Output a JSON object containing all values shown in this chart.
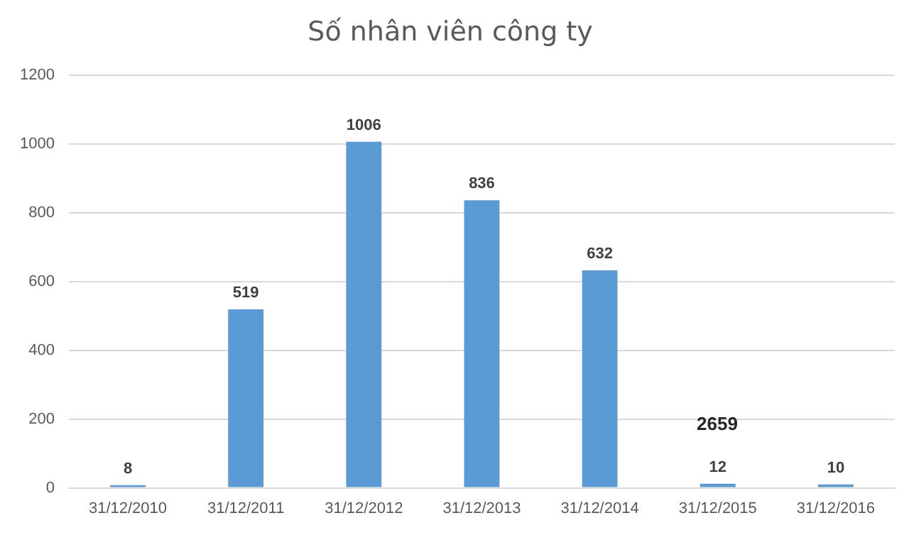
{
  "chart_data": {
    "type": "bar",
    "title": "Số nhân viên công ty",
    "categories": [
      "31/12/2010",
      "31/12/2011",
      "31/12/2012",
      "31/12/2013",
      "31/12/2014",
      "31/12/2015",
      "31/12/2016"
    ],
    "values": [
      8,
      519,
      1006,
      836,
      632,
      12,
      10
    ],
    "color": "#5b9bd5",
    "ylim": [
      0,
      1200
    ],
    "yticks": [
      0,
      200,
      400,
      600,
      800,
      1000,
      1200
    ],
    "grid": "y",
    "data_labels": true,
    "legend": false,
    "annotations": [
      "2659"
    ]
  }
}
